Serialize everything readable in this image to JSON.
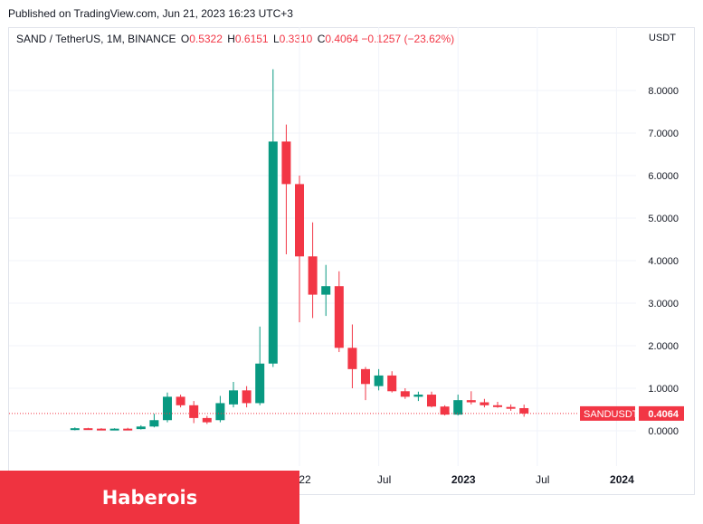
{
  "published": "Published on TradingView.com, Jun 21, 2023 16:23 UTC+3",
  "legend": {
    "symbol": "SAND / TetherUS, 1M, BINANCE",
    "open_label": "O",
    "open": "0.5322",
    "high_label": "H",
    "high": "0.6151",
    "low_label": "L",
    "low": "0.3310",
    "close_label": "C",
    "close": "0.4064",
    "change": "−0.1257 (−23.62%)"
  },
  "price_axis_unit": "USDT",
  "price_tag": {
    "symbol": "SANDUSDT",
    "value": "0.4064"
  },
  "watermark": "Haberois",
  "colors": {
    "up": "#089981",
    "down": "#f23645",
    "grid": "#f0f3fa",
    "axis_text": "#131722"
  },
  "chart_data": {
    "type": "candlestick",
    "title": "SAND / TetherUS, 1M, BINANCE",
    "ylim": [
      -1,
      9
    ],
    "y_ticks": [
      0,
      1,
      2,
      3,
      4,
      5,
      6,
      7,
      8
    ],
    "y_tick_labels": [
      "0.0000",
      "1.0000",
      "2.0000",
      "3.0000",
      "4.0000",
      "5.0000",
      "6.0000",
      "7.0000",
      "8.0000"
    ],
    "x_ticks": [
      {
        "label": "22",
        "month": "2022-01"
      },
      {
        "label": "Jul",
        "month": "2022-07"
      },
      {
        "label": "2023",
        "month": "2023-01"
      },
      {
        "label": "Jul",
        "month": "2023-07"
      },
      {
        "label": "2024",
        "month": "2024-01"
      }
    ],
    "x_range": [
      "2020-03",
      "2024-02"
    ],
    "last_price": 0.4064,
    "candles": [
      {
        "month": "2020-08",
        "open": 0.02,
        "high": 0.08,
        "low": 0.01,
        "close": 0.06
      },
      {
        "month": "2020-09",
        "open": 0.06,
        "high": 0.07,
        "low": 0.03,
        "close": 0.05
      },
      {
        "month": "2020-10",
        "open": 0.05,
        "high": 0.06,
        "low": 0.03,
        "close": 0.04
      },
      {
        "month": "2020-11",
        "open": 0.04,
        "high": 0.06,
        "low": 0.03,
        "close": 0.05
      },
      {
        "month": "2020-12",
        "open": 0.05,
        "high": 0.07,
        "low": 0.03,
        "close": 0.04
      },
      {
        "month": "2021-01",
        "open": 0.04,
        "high": 0.13,
        "low": 0.03,
        "close": 0.1
      },
      {
        "month": "2021-02",
        "open": 0.1,
        "high": 0.4,
        "low": 0.08,
        "close": 0.25
      },
      {
        "month": "2021-03",
        "open": 0.25,
        "high": 0.9,
        "low": 0.2,
        "close": 0.8
      },
      {
        "month": "2021-04",
        "open": 0.8,
        "high": 0.85,
        "low": 0.55,
        "close": 0.6
      },
      {
        "month": "2021-05",
        "open": 0.6,
        "high": 0.7,
        "low": 0.18,
        "close": 0.3
      },
      {
        "month": "2021-06",
        "open": 0.3,
        "high": 0.35,
        "low": 0.16,
        "close": 0.2
      },
      {
        "month": "2021-07",
        "open": 0.25,
        "high": 0.82,
        "low": 0.2,
        "close": 0.65
      },
      {
        "month": "2021-08",
        "open": 0.62,
        "high": 1.15,
        "low": 0.55,
        "close": 0.95
      },
      {
        "month": "2021-09",
        "open": 0.95,
        "high": 1.05,
        "low": 0.55,
        "close": 0.65
      },
      {
        "month": "2021-10",
        "open": 0.65,
        "high": 2.45,
        "low": 0.6,
        "close": 1.58
      },
      {
        "month": "2021-11",
        "open": 1.58,
        "high": 8.5,
        "low": 1.5,
        "close": 6.8
      },
      {
        "month": "2021-12",
        "open": 6.8,
        "high": 7.2,
        "low": 4.15,
        "close": 5.8
      },
      {
        "month": "2022-01",
        "open": 5.8,
        "high": 6.0,
        "low": 2.55,
        "close": 4.1
      },
      {
        "month": "2022-02",
        "open": 4.1,
        "high": 4.9,
        "low": 2.65,
        "close": 3.2
      },
      {
        "month": "2022-03",
        "open": 3.2,
        "high": 3.9,
        "low": 2.7,
        "close": 3.4
      },
      {
        "month": "2022-04",
        "open": 3.4,
        "high": 3.75,
        "low": 1.85,
        "close": 1.95
      },
      {
        "month": "2022-05",
        "open": 1.95,
        "high": 2.5,
        "low": 1.0,
        "close": 1.45
      },
      {
        "month": "2022-06",
        "open": 1.45,
        "high": 1.5,
        "low": 0.72,
        "close": 1.1
      },
      {
        "month": "2022-07",
        "open": 1.05,
        "high": 1.45,
        "low": 0.95,
        "close": 1.3
      },
      {
        "month": "2022-08",
        "open": 1.3,
        "high": 1.4,
        "low": 0.9,
        "close": 0.93
      },
      {
        "month": "2022-09",
        "open": 0.93,
        "high": 1.0,
        "low": 0.75,
        "close": 0.8
      },
      {
        "month": "2022-10",
        "open": 0.8,
        "high": 0.92,
        "low": 0.7,
        "close": 0.85
      },
      {
        "month": "2022-11",
        "open": 0.85,
        "high": 0.92,
        "low": 0.55,
        "close": 0.57
      },
      {
        "month": "2022-12",
        "open": 0.57,
        "high": 0.6,
        "low": 0.36,
        "close": 0.38
      },
      {
        "month": "2023-01",
        "open": 0.38,
        "high": 0.85,
        "low": 0.36,
        "close": 0.72
      },
      {
        "month": "2023-02",
        "open": 0.72,
        "high": 0.93,
        "low": 0.62,
        "close": 0.67
      },
      {
        "month": "2023-03",
        "open": 0.67,
        "high": 0.75,
        "low": 0.55,
        "close": 0.6
      },
      {
        "month": "2023-04",
        "open": 0.6,
        "high": 0.68,
        "low": 0.54,
        "close": 0.56
      },
      {
        "month": "2023-05",
        "open": 0.56,
        "high": 0.62,
        "low": 0.47,
        "close": 0.53
      },
      {
        "month": "2023-06",
        "open": 0.5322,
        "high": 0.6151,
        "low": 0.331,
        "close": 0.4064
      }
    ]
  }
}
